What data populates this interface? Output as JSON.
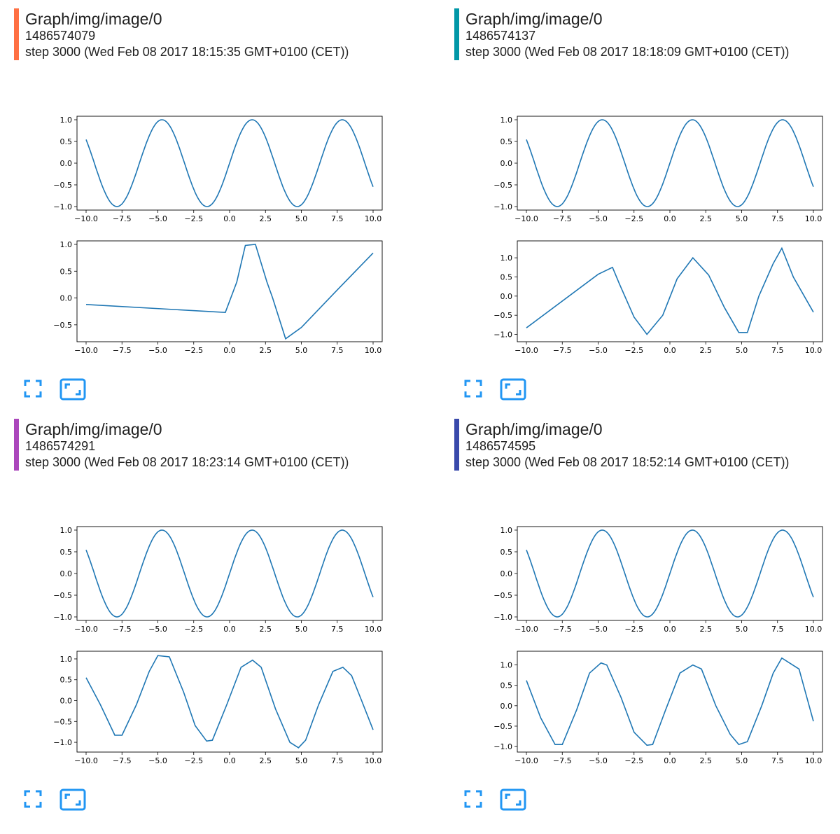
{
  "colors": {
    "series": "#1f77b4",
    "button": "#2196f3"
  },
  "icons": {
    "fit": "fullscreen-icon",
    "actual": "actual-size-icon"
  },
  "cards": [
    {
      "tag": "Graph/img/image/0",
      "run": "1486574079",
      "step": "step 3000 (Wed Feb 08 2017 18:15:35 GMT+0100 (CET))",
      "color": "#ff7043"
    },
    {
      "tag": "Graph/img/image/0",
      "run": "1486574137",
      "step": "step 3000 (Wed Feb 08 2017 18:18:09 GMT+0100 (CET))",
      "color": "#0097a7"
    },
    {
      "tag": "Graph/img/image/0",
      "run": "1486574291",
      "step": "step 3000 (Wed Feb 08 2017 18:23:14 GMT+0100 (CET))",
      "color": "#ab47bc"
    },
    {
      "tag": "Graph/img/image/0",
      "run": "1486574595",
      "step": "step 3000 (Wed Feb 08 2017 18:52:14 GMT+0100 (CET))",
      "color": "#3949ab"
    }
  ],
  "chart_data": [
    {
      "type": "line",
      "card": 0,
      "panel": "top",
      "series_fn": "sin",
      "x": [
        -10,
        10
      ],
      "xticks": [
        "−10.0",
        "−7.5",
        "−5.0",
        "−2.5",
        "0.0",
        "2.5",
        "5.0",
        "7.5",
        "10.0"
      ],
      "yticks": [
        "1.0",
        "0.5",
        "0.0",
        "−0.5",
        "−1.0"
      ],
      "ylim": [
        -1.0,
        1.0
      ]
    },
    {
      "type": "line",
      "card": 0,
      "panel": "bottom",
      "points": [
        [
          -10,
          -0.12
        ],
        [
          -0.3,
          -0.27
        ],
        [
          0.5,
          0.3
        ],
        [
          1.1,
          0.98
        ],
        [
          1.8,
          1.0
        ],
        [
          2.6,
          0.3
        ],
        [
          3.0,
          0.0
        ],
        [
          3.9,
          -0.76
        ],
        [
          5.0,
          -0.55
        ],
        [
          7.5,
          0.15
        ],
        [
          10,
          0.84
        ]
      ],
      "xticks": [
        "−10.0",
        "−7.5",
        "−5.0",
        "−2.5",
        "0.0",
        "2.5",
        "5.0",
        "7.5",
        "10.0"
      ],
      "yticks": [
        "1.0",
        "0.5",
        "0.0",
        "−0.5"
      ],
      "ylim": [
        -0.75,
        1.0
      ]
    },
    {
      "type": "line",
      "card": 1,
      "panel": "top",
      "series_fn": "sin",
      "x": [
        -10,
        10
      ],
      "xticks": [
        "−10.0",
        "−7.5",
        "−5.0",
        "−2.5",
        "0.0",
        "2.5",
        "5.0",
        "7.5",
        "10.0"
      ],
      "yticks": [
        "1.0",
        "0.5",
        "0.0",
        "−0.5",
        "−1.0"
      ],
      "ylim": [
        -1.0,
        1.0
      ]
    },
    {
      "type": "line",
      "card": 1,
      "panel": "bottom",
      "points": [
        [
          -10,
          -0.83
        ],
        [
          -5,
          0.57
        ],
        [
          -4.0,
          0.75
        ],
        [
          -3.5,
          0.3
        ],
        [
          -2.5,
          -0.55
        ],
        [
          -1.6,
          -1.0
        ],
        [
          -0.5,
          -0.5
        ],
        [
          0.5,
          0.45
        ],
        [
          1.6,
          1.0
        ],
        [
          2.7,
          0.55
        ],
        [
          3.8,
          -0.3
        ],
        [
          4.8,
          -0.95
        ],
        [
          5.4,
          -0.95
        ],
        [
          6.2,
          0.0
        ],
        [
          7.2,
          0.85
        ],
        [
          7.8,
          1.25
        ],
        [
          8.6,
          0.5
        ],
        [
          10,
          -0.42
        ]
      ],
      "xticks": [
        "−10.0",
        "−7.5",
        "−5.0",
        "−2.5",
        "0.0",
        "2.5",
        "5.0",
        "7.5",
        "10.0"
      ],
      "yticks": [
        "1.0",
        "0.5",
        "0.0",
        "−0.5",
        "−1.0"
      ],
      "ylim": [
        -1.1,
        1.35
      ]
    },
    {
      "type": "line",
      "card": 2,
      "panel": "top",
      "series_fn": "sin",
      "x": [
        -10,
        10
      ],
      "xticks": [
        "−10.0",
        "−7.5",
        "−5.0",
        "−2.5",
        "0.0",
        "2.5",
        "5.0",
        "7.5",
        "10.0"
      ],
      "yticks": [
        "1.0",
        "0.5",
        "0.0",
        "−0.5",
        "−1.0"
      ],
      "ylim": [
        -1.0,
        1.0
      ]
    },
    {
      "type": "line",
      "card": 2,
      "panel": "bottom",
      "points": [
        [
          -10,
          0.55
        ],
        [
          -9,
          -0.1
        ],
        [
          -8.0,
          -0.83
        ],
        [
          -7.5,
          -0.83
        ],
        [
          -6.5,
          -0.1
        ],
        [
          -5.6,
          0.7
        ],
        [
          -5.0,
          1.08
        ],
        [
          -4.2,
          1.05
        ],
        [
          -3.2,
          0.2
        ],
        [
          -2.4,
          -0.6
        ],
        [
          -1.6,
          -0.97
        ],
        [
          -1.2,
          -0.95
        ],
        [
          -0.2,
          -0.1
        ],
        [
          0.8,
          0.8
        ],
        [
          1.6,
          0.97
        ],
        [
          2.2,
          0.8
        ],
        [
          3.2,
          -0.2
        ],
        [
          4.2,
          -1.0
        ],
        [
          4.8,
          -1.13
        ],
        [
          5.3,
          -0.95
        ],
        [
          6.2,
          -0.1
        ],
        [
          7.2,
          0.7
        ],
        [
          7.9,
          0.8
        ],
        [
          8.5,
          0.6
        ],
        [
          9.2,
          0.0
        ],
        [
          10,
          -0.7
        ]
      ],
      "xticks": [
        "−10.0",
        "−7.5",
        "−5.0",
        "−2.5",
        "0.0",
        "2.5",
        "5.0",
        "7.5",
        "10.0"
      ],
      "yticks": [
        "1.0",
        "0.5",
        "0.0",
        "−0.5",
        "−1.0"
      ],
      "ylim": [
        -1.15,
        1.1
      ]
    },
    {
      "type": "line",
      "card": 3,
      "panel": "top",
      "series_fn": "sin",
      "x": [
        -10,
        10
      ],
      "xticks": [
        "−10.0",
        "−7.5",
        "−5.0",
        "−2.5",
        "0.0",
        "2.5",
        "5.0",
        "7.5",
        "10.0"
      ],
      "yticks": [
        "1.0",
        "0.5",
        "0.0",
        "−0.5",
        "−1.0"
      ],
      "ylim": [
        -1.0,
        1.0
      ]
    },
    {
      "type": "line",
      "card": 3,
      "panel": "bottom",
      "points": [
        [
          -10,
          0.62
        ],
        [
          -9,
          -0.3
        ],
        [
          -8.0,
          -0.95
        ],
        [
          -7.5,
          -0.95
        ],
        [
          -6.5,
          -0.1
        ],
        [
          -5.6,
          0.8
        ],
        [
          -4.8,
          1.05
        ],
        [
          -4.4,
          1.0
        ],
        [
          -3.4,
          0.2
        ],
        [
          -2.5,
          -0.65
        ],
        [
          -1.6,
          -0.97
        ],
        [
          -1.2,
          -0.95
        ],
        [
          -0.3,
          -0.1
        ],
        [
          0.7,
          0.8
        ],
        [
          1.6,
          1.0
        ],
        [
          2.2,
          0.9
        ],
        [
          3.2,
          0.0
        ],
        [
          4.2,
          -0.7
        ],
        [
          4.8,
          -0.95
        ],
        [
          5.4,
          -0.88
        ],
        [
          6.4,
          0.0
        ],
        [
          7.2,
          0.8
        ],
        [
          7.8,
          1.17
        ],
        [
          9.0,
          0.9
        ],
        [
          10,
          -0.38
        ]
      ],
      "xticks": [
        "−10.0",
        "−7.5",
        "−5.0",
        "−2.5",
        "0.0",
        "2.5",
        "5.0",
        "7.5",
        "10.0"
      ],
      "yticks": [
        "1.0",
        "0.5",
        "0.0",
        "−0.5",
        "−1.0"
      ],
      "ylim": [
        -1.05,
        1.25
      ]
    }
  ]
}
